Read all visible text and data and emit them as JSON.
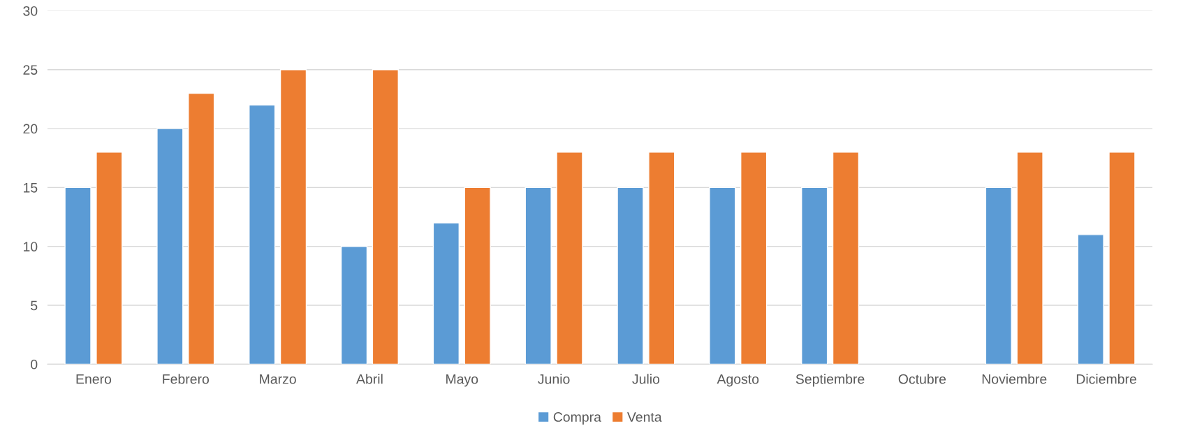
{
  "chart_data": {
    "type": "bar",
    "categories": [
      "Enero",
      "Febrero",
      "Marzo",
      "Abril",
      "Mayo",
      "Junio",
      "Julio",
      "Agosto",
      "Septiembre",
      "Octubre",
      "Noviembre",
      "Diciembre"
    ],
    "series": [
      {
        "name": "Compra",
        "color": "#5b9bd5",
        "values": [
          15,
          20,
          22,
          10,
          12,
          15,
          15,
          15,
          15,
          null,
          15,
          11
        ]
      },
      {
        "name": "Venta",
        "color": "#ed7d31",
        "values": [
          18,
          23,
          25,
          25,
          15,
          18,
          18,
          18,
          18,
          null,
          18,
          18
        ]
      }
    ],
    "ylim": [
      0,
      30
    ],
    "yticks": [
      0,
      5,
      10,
      15,
      20,
      25,
      30
    ],
    "grid": "y",
    "legend": "bottom"
  }
}
